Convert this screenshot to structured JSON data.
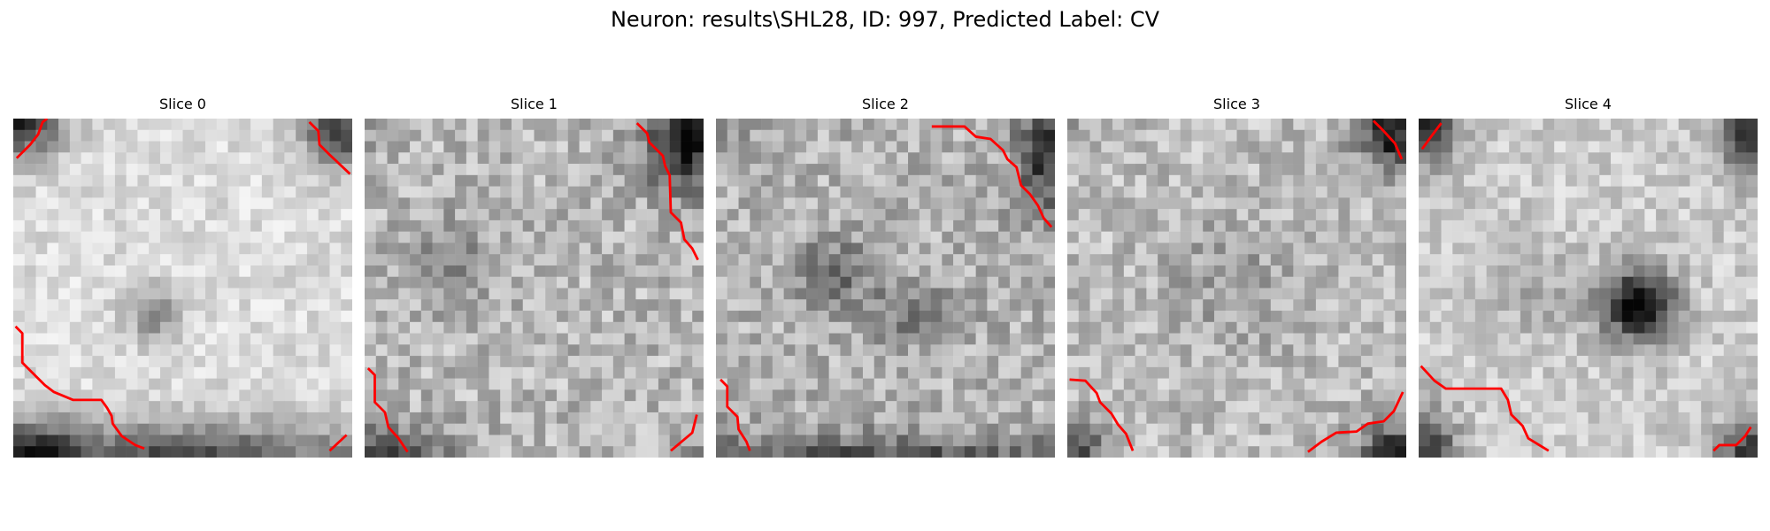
{
  "figure": {
    "title": "Neuron: results\\SHL28, ID: 997, Predicted Label: CV"
  },
  "panels": [
    {
      "title": "Slice 0"
    },
    {
      "title": "Slice 1"
    },
    {
      "title": "Slice 2"
    },
    {
      "title": "Slice 3"
    },
    {
      "title": "Slice 4"
    }
  ],
  "colors": {
    "contour": "#ff0000",
    "colormap": "gray"
  }
}
